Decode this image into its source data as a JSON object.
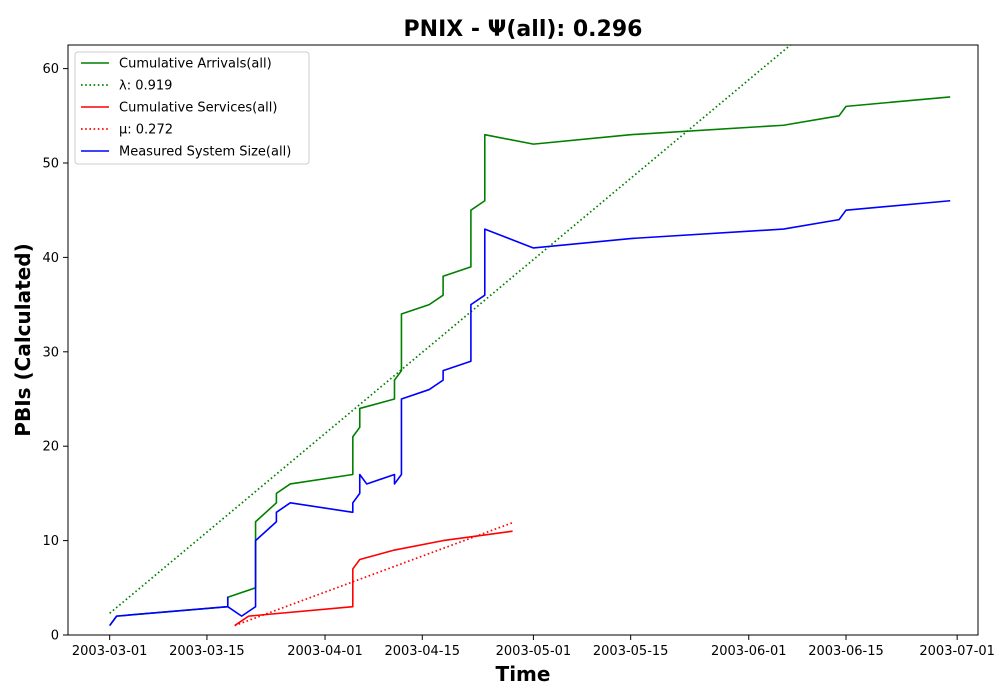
{
  "chart_data": {
    "type": "line",
    "title": "PNIX -  Ψ(all): 0.296",
    "xlabel": "Time",
    "ylabel": "PBIs (Calculated)",
    "xlim": [
      "2003-02-23",
      "2003-07-04"
    ],
    "ylim": [
      0,
      62.5
    ],
    "x_ticks": [
      "2003-03-01",
      "2003-03-15",
      "2003-04-01",
      "2003-04-15",
      "2003-05-01",
      "2003-05-15",
      "2003-06-01",
      "2003-06-15",
      "2003-07-01"
    ],
    "y_ticks": [
      0,
      10,
      20,
      30,
      40,
      50,
      60
    ],
    "grid": false,
    "legend_position": "top-left",
    "series": [
      {
        "name": "Cumulative Arrivals(all)",
        "style": "solid",
        "color": "#008000",
        "points": [
          [
            "2003-03-01",
            1
          ],
          [
            "2003-03-02",
            2
          ],
          [
            "2003-03-18",
            3
          ],
          [
            "2003-03-18",
            4
          ],
          [
            "2003-03-22",
            5
          ],
          [
            "2003-03-22",
            12
          ],
          [
            "2003-03-25",
            14
          ],
          [
            "2003-03-25",
            15
          ],
          [
            "2003-03-27",
            16
          ],
          [
            "2003-04-05",
            17
          ],
          [
            "2003-04-05",
            20
          ],
          [
            "2003-04-05",
            21
          ],
          [
            "2003-04-06",
            22
          ],
          [
            "2003-04-06",
            24
          ],
          [
            "2003-04-11",
            25
          ],
          [
            "2003-04-11",
            27
          ],
          [
            "2003-04-12",
            28
          ],
          [
            "2003-04-12",
            34
          ],
          [
            "2003-04-16",
            35
          ],
          [
            "2003-04-18",
            36
          ],
          [
            "2003-04-18",
            37
          ],
          [
            "2003-04-18",
            38
          ],
          [
            "2003-04-22",
            39
          ],
          [
            "2003-04-22",
            45
          ],
          [
            "2003-04-24",
            46
          ],
          [
            "2003-04-24",
            53
          ],
          [
            "2003-05-01",
            52
          ],
          [
            "2003-05-15",
            53
          ],
          [
            "2003-06-06",
            54
          ],
          [
            "2003-06-14",
            55
          ],
          [
            "2003-06-15",
            56
          ],
          [
            "2003-06-30",
            57
          ]
        ]
      },
      {
        "name": "λ: 0.919",
        "style": "dotted",
        "color": "#008000",
        "points": [
          [
            "2003-03-01",
            2.3
          ],
          [
            "2003-06-07",
            62.5
          ]
        ]
      },
      {
        "name": "Cumulative Services(all)",
        "style": "solid",
        "color": "#ff0000",
        "points": [
          [
            "2003-03-19",
            1
          ],
          [
            "2003-03-21",
            2
          ],
          [
            "2003-04-05",
            3
          ],
          [
            "2003-04-05",
            7
          ],
          [
            "2003-04-06",
            8
          ],
          [
            "2003-04-11",
            9
          ],
          [
            "2003-04-18",
            10
          ],
          [
            "2003-04-28",
            11
          ]
        ]
      },
      {
        "name": "μ: 0.272",
        "style": "dotted",
        "color": "#ff0000",
        "points": [
          [
            "2003-03-19",
            1
          ],
          [
            "2003-04-28",
            11.9
          ]
        ]
      },
      {
        "name": "Measured System Size(all)",
        "style": "solid",
        "color": "#0000ff",
        "points": [
          [
            "2003-03-01",
            1
          ],
          [
            "2003-03-02",
            2
          ],
          [
            "2003-03-18",
            3
          ],
          [
            "2003-03-18",
            4
          ],
          [
            "2003-03-18",
            3
          ],
          [
            "2003-03-20",
            2
          ],
          [
            "2003-03-22",
            3
          ],
          [
            "2003-03-22",
            10
          ],
          [
            "2003-03-25",
            12
          ],
          [
            "2003-03-25",
            13
          ],
          [
            "2003-03-27",
            14
          ],
          [
            "2003-04-05",
            13
          ],
          [
            "2003-04-05",
            14
          ],
          [
            "2003-04-06",
            15
          ],
          [
            "2003-04-06",
            17
          ],
          [
            "2003-04-07",
            16
          ],
          [
            "2003-04-11",
            17
          ],
          [
            "2003-04-11",
            16
          ],
          [
            "2003-04-12",
            17
          ],
          [
            "2003-04-12",
            18
          ],
          [
            "2003-04-12",
            19
          ],
          [
            "2003-04-12",
            25
          ],
          [
            "2003-04-16",
            26
          ],
          [
            "2003-04-18",
            27
          ],
          [
            "2003-04-18",
            28
          ],
          [
            "2003-04-22",
            29
          ],
          [
            "2003-04-22",
            35
          ],
          [
            "2003-04-24",
            36
          ],
          [
            "2003-04-24",
            43
          ],
          [
            "2003-05-01",
            41
          ],
          [
            "2003-05-15",
            42
          ],
          [
            "2003-06-06",
            43
          ],
          [
            "2003-06-14",
            44
          ],
          [
            "2003-06-15",
            45
          ],
          [
            "2003-06-30",
            46
          ]
        ]
      }
    ]
  }
}
